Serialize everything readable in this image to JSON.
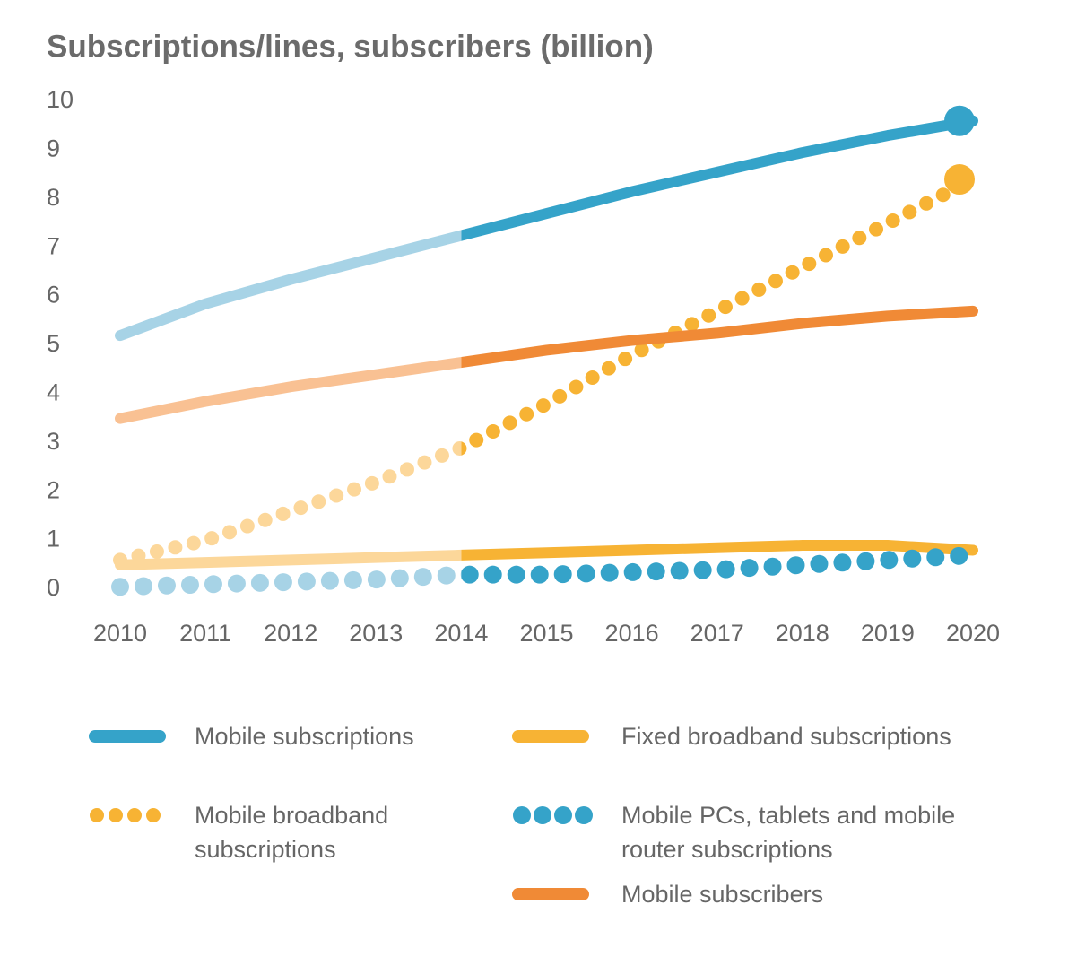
{
  "chart_data": {
    "type": "line",
    "title": "Subscriptions/lines, subscribers (billion)",
    "x": [
      2010,
      2011,
      2012,
      2013,
      2014,
      2015,
      2016,
      2017,
      2018,
      2019,
      2020
    ],
    "xlim": [
      2010,
      2020
    ],
    "xticks": [
      2010,
      2011,
      2012,
      2013,
      2014,
      2015,
      2016,
      2017,
      2018,
      2019,
      2020
    ],
    "ylim": [
      0,
      10
    ],
    "yticks": [
      0,
      1,
      2,
      3,
      4,
      5,
      6,
      7,
      8,
      9,
      10
    ],
    "grid": false,
    "forecast_from": 2014,
    "series": [
      {
        "name": "Mobile subscriptions",
        "color": "#35a3c9",
        "history_color": "#a7d3e6",
        "style": "solid",
        "end_marker": true,
        "values": [
          5.2,
          5.85,
          6.35,
          6.8,
          7.25,
          7.7,
          8.15,
          8.55,
          8.95,
          9.3,
          9.6
        ]
      },
      {
        "name": "Fixed broadband subscriptions",
        "color": "#f7b334",
        "history_color": "#fcd79a",
        "style": "solid",
        "end_marker": false,
        "values": [
          0.5,
          0.55,
          0.6,
          0.65,
          0.7,
          0.75,
          0.8,
          0.85,
          0.9,
          0.9,
          0.8
        ]
      },
      {
        "name": "Mobile broadband subscriptions",
        "color": "#f7b334",
        "history_color": "#fcd79a",
        "style": "dotted",
        "end_marker": true,
        "values": [
          0.6,
          1.0,
          1.6,
          2.2,
          2.9,
          3.8,
          4.8,
          5.7,
          6.6,
          7.5,
          8.4
        ]
      },
      {
        "name": "Mobile PCs, tablets and mobile router subscriptions",
        "color": "#35a3c9",
        "history_color": "#a7d3e6",
        "style": "dotted",
        "end_marker": false,
        "values": [
          0.05,
          0.1,
          0.15,
          0.2,
          0.3,
          0.3,
          0.35,
          0.4,
          0.5,
          0.6,
          0.7
        ]
      },
      {
        "name": "Mobile subscribers",
        "color": "#f08a36",
        "history_color": "#f9c193",
        "style": "solid",
        "end_marker": false,
        "values": [
          3.5,
          3.85,
          4.15,
          4.4,
          4.65,
          4.9,
          5.1,
          5.25,
          5.45,
          5.6,
          5.7
        ]
      }
    ]
  }
}
